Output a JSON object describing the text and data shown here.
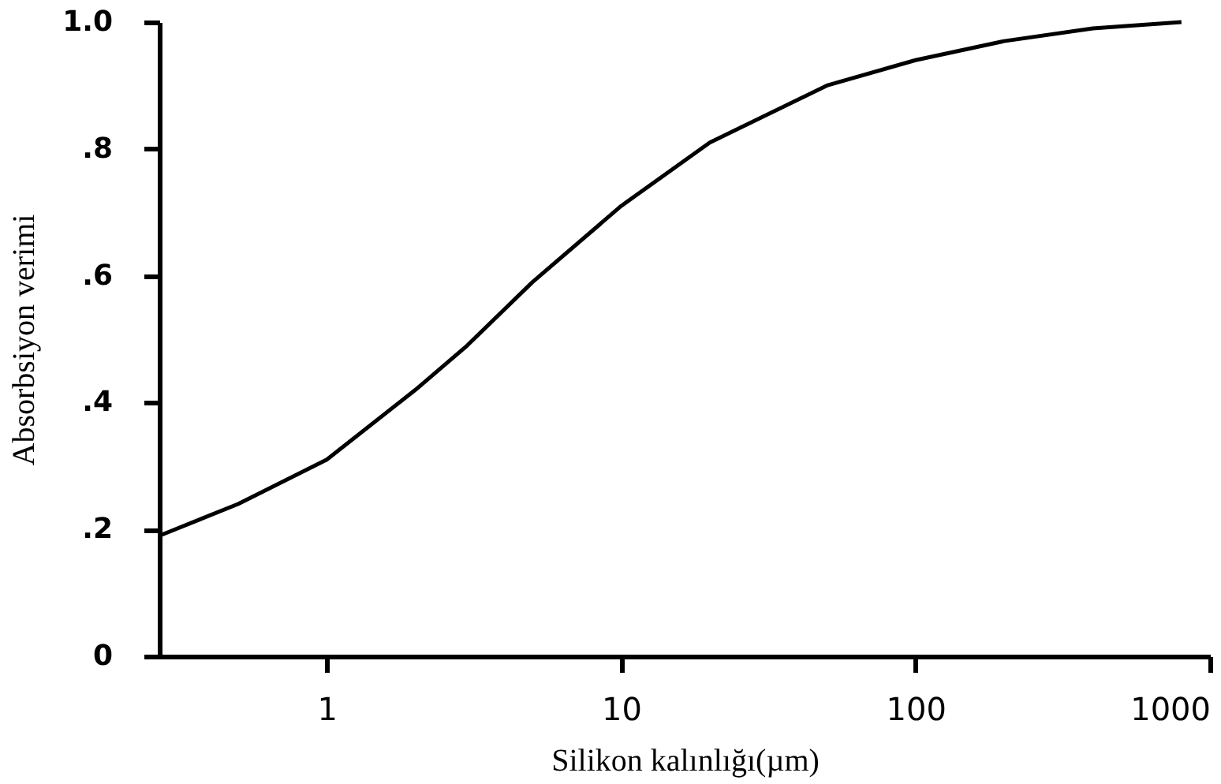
{
  "chart_data": {
    "type": "line",
    "xlabel": "Silikon kalınlığı(µm)",
    "ylabel": "Absorbsiyon verimi",
    "x": [
      0.27,
      0.5,
      1,
      2,
      3,
      5,
      10,
      20,
      50,
      100,
      200,
      400,
      800
    ],
    "series": [
      {
        "color": "#000000",
        "values": [
          0.19,
          0.24,
          0.31,
          0.42,
          0.49,
          0.59,
          0.71,
          0.81,
          0.9,
          0.94,
          0.97,
          0.99,
          1.0
        ]
      }
    ],
    "log": "x",
    "xlim": [
      0.27,
      1000
    ],
    "xticks": [
      1,
      10,
      100,
      1000
    ],
    "ylim": [
      0,
      1.0
    ],
    "yticks": [
      {
        "value": 0,
        "label": "0"
      },
      {
        "value": 0.2,
        "label": ".2"
      },
      {
        "value": 0.4,
        "label": ".4"
      },
      {
        "value": 0.6,
        "label": ".6"
      },
      {
        "value": 0.8,
        "label": ".8"
      },
      {
        "value": 1.0,
        "label": "1.0"
      }
    ],
    "grid": false,
    "marker": "none",
    "line_style": "solid"
  }
}
